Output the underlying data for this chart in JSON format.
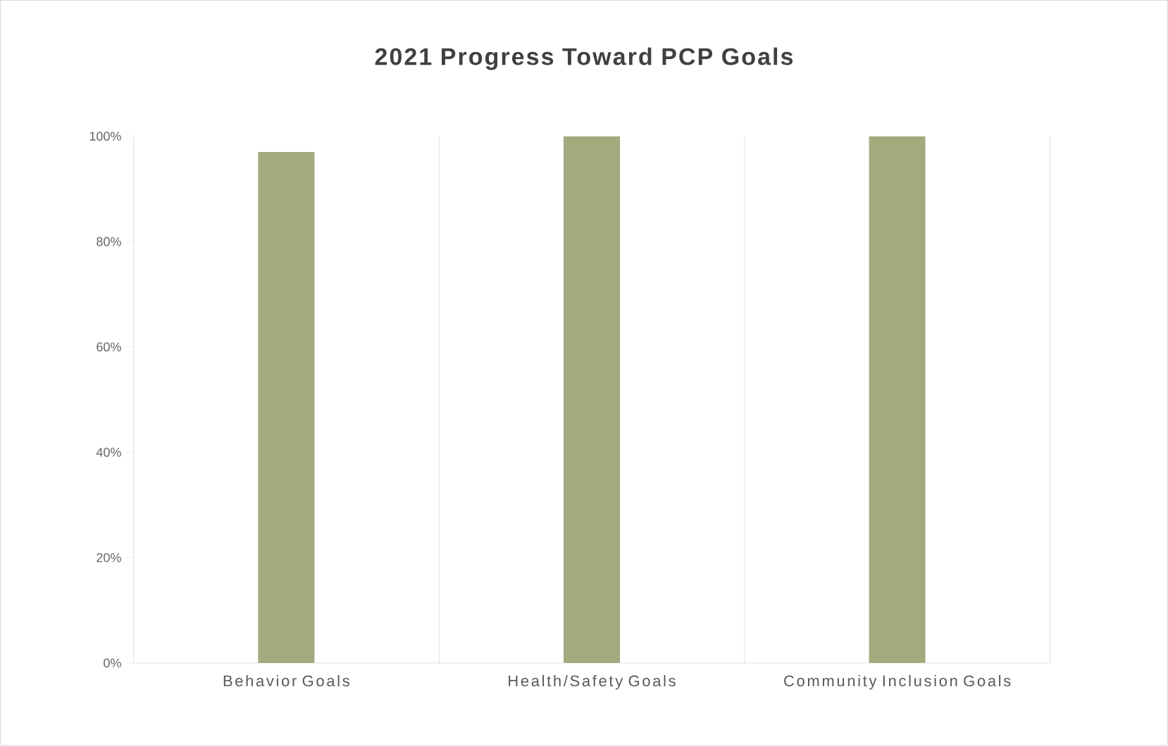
{
  "chart_data": {
    "type": "bar",
    "title": "2021 Progress Toward PCP Goals",
    "categories": [
      "Behavior Goals",
      "Health/Safety Goals",
      "Community Inclusion Goals"
    ],
    "values": [
      97,
      100,
      100
    ],
    "color": "#a2aa7e",
    "ylim": [
      0,
      100
    ],
    "yticks": [
      {
        "value": 0,
        "label": "0%"
      },
      {
        "value": 20,
        "label": "20%"
      },
      {
        "value": 40,
        "label": "40%"
      },
      {
        "value": 60,
        "label": "60%"
      },
      {
        "value": 80,
        "label": "80%"
      },
      {
        "value": 100,
        "label": "100%"
      }
    ],
    "grid": "x"
  }
}
